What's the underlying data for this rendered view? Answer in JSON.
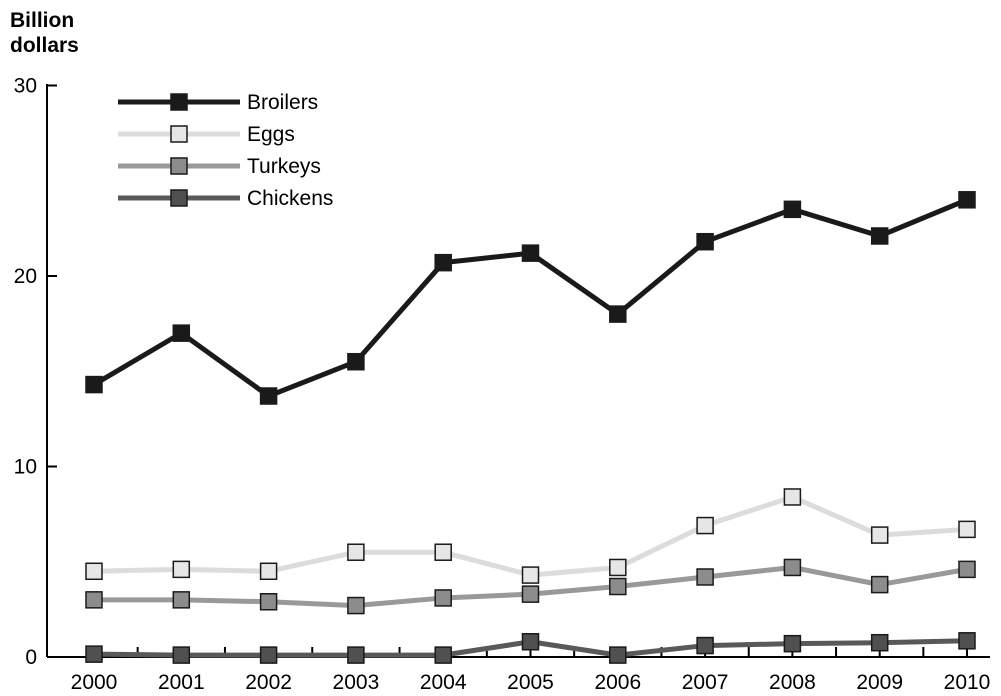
{
  "chart_data": {
    "type": "line",
    "unit_label_line1": "Billion",
    "unit_label_line2": "dollars",
    "categories": [
      "2000",
      "2001",
      "2002",
      "2003",
      "2004",
      "2005",
      "2006",
      "2007",
      "2008",
      "2009",
      "2010"
    ],
    "yticks": [
      "0",
      "10",
      "20",
      "30"
    ],
    "ylim": [
      0,
      30
    ],
    "grid": false,
    "legend_position": "top-left",
    "series": [
      {
        "name": "Broilers",
        "color": "#1a1a1a",
        "marker_fill": "#1a1a1a",
        "values": [
          14.3,
          17.0,
          13.7,
          15.5,
          20.7,
          21.2,
          18.0,
          21.8,
          23.5,
          22.1,
          24.0
        ]
      },
      {
        "name": "Eggs",
        "color": "#dcdcdc",
        "marker_fill": "#e6e6e6",
        "values": [
          4.5,
          4.6,
          4.5,
          5.5,
          5.5,
          4.3,
          4.7,
          6.9,
          8.4,
          6.4,
          6.7
        ]
      },
      {
        "name": "Turkeys",
        "color": "#999999",
        "marker_fill": "#8c8c8c",
        "values": [
          3.0,
          3.0,
          2.9,
          2.7,
          3.1,
          3.3,
          3.7,
          4.2,
          4.7,
          3.8,
          4.6
        ]
      },
      {
        "name": "Chickens",
        "color": "#595959",
        "marker_fill": "#505050",
        "values": [
          0.15,
          0.1,
          0.1,
          0.1,
          0.1,
          0.8,
          0.1,
          0.6,
          0.7,
          0.75,
          0.85
        ]
      }
    ]
  }
}
